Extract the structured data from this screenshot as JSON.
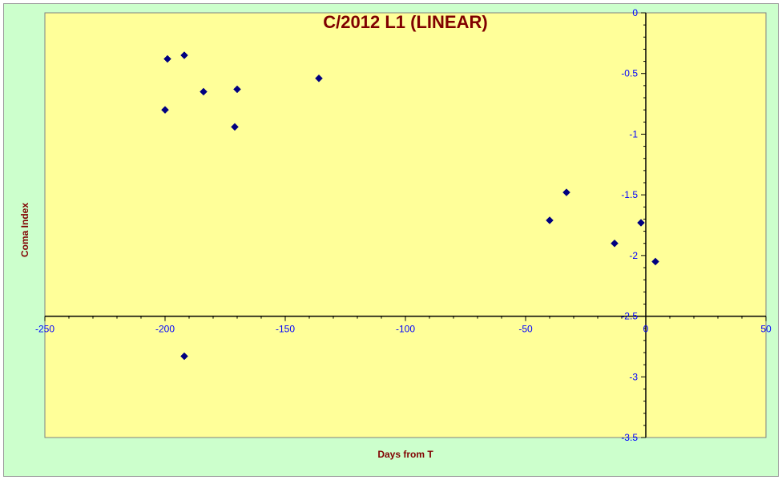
{
  "chart_data": {
    "type": "scatter",
    "title": "C/2012 L1 (LINEAR)",
    "xlabel": "Days  from T",
    "ylabel": "Coma Index",
    "xlim": [
      -250,
      50
    ],
    "ylim": [
      -3.5,
      0
    ],
    "x_ticks": [
      -250,
      -200,
      -150,
      -100,
      -50,
      0,
      50
    ],
    "y_ticks": [
      0,
      -0.5,
      -1,
      -1.5,
      -2,
      -2.5,
      -3,
      -3.5
    ],
    "x_tick_labels": [
      "-250",
      "-200",
      "-150",
      "-100",
      "-50",
      "0",
      "50"
    ],
    "y_tick_labels": [
      "0",
      "-0.5",
      "-1",
      "-1.5",
      "-2",
      "-2.5",
      "-3",
      "-3.5"
    ],
    "grid": false,
    "legend": "none",
    "colors": {
      "plot_bg": "#ffff99",
      "chart_bg": "#ccffcc",
      "marker": "#000080",
      "title": "#800000",
      "ticks": "#0000ff"
    },
    "series": [
      {
        "marker": "diamond",
        "points": [
          {
            "x": -199,
            "y": -0.38
          },
          {
            "x": -192,
            "y": -0.35
          },
          {
            "x": -200,
            "y": -0.8
          },
          {
            "x": -184,
            "y": -0.65
          },
          {
            "x": -170,
            "y": -0.63
          },
          {
            "x": -171,
            "y": -0.94
          },
          {
            "x": -136,
            "y": -0.54
          },
          {
            "x": -192,
            "y": -2.83
          },
          {
            "x": -33,
            "y": -1.48
          },
          {
            "x": -40,
            "y": -1.71
          },
          {
            "x": -13,
            "y": -1.9
          },
          {
            "x": -2,
            "y": -1.73
          },
          {
            "x": 4,
            "y": -2.05
          }
        ]
      }
    ]
  }
}
